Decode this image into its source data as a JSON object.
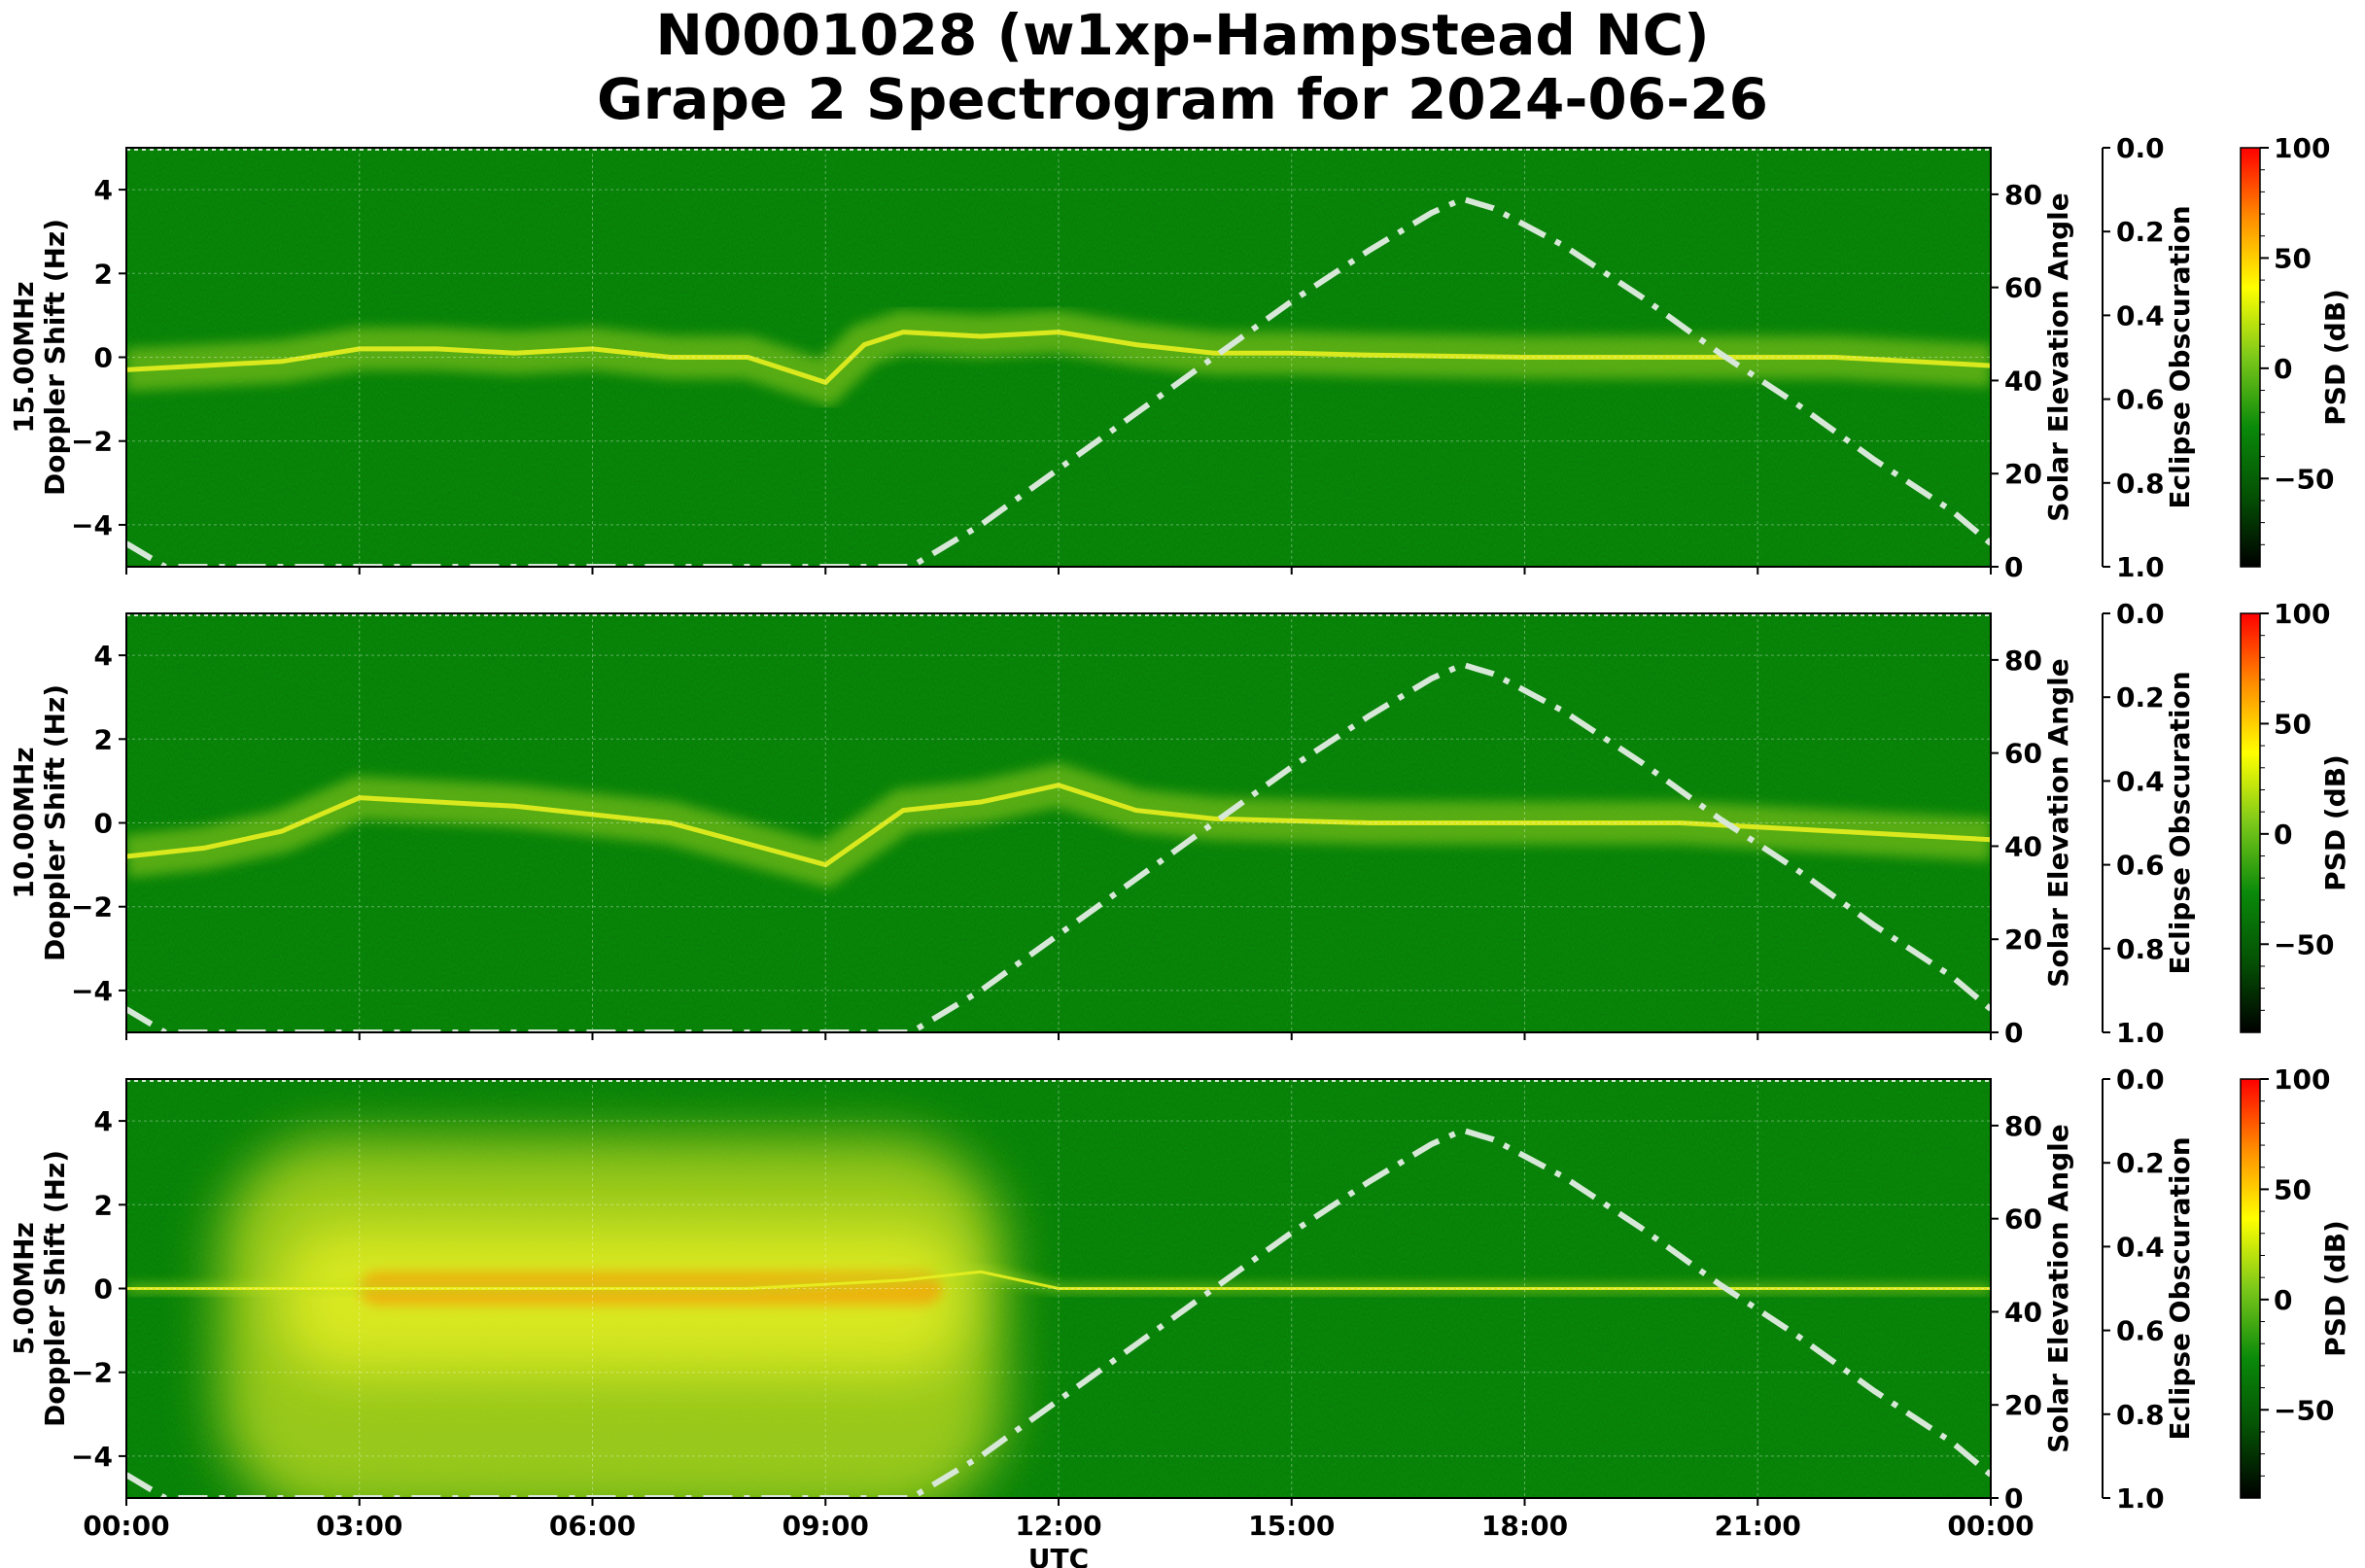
{
  "title": {
    "line1": "N0001028 (w1xp-Hampstead NC)",
    "line2": "Grape 2 Spectrogram for 2024-06-26"
  },
  "colors": {
    "spectrogram_base": "#0a7a0a",
    "signal_yellow": "#e8f020",
    "signal_orange": "#ff8800",
    "solar_curve": "#d8e8d8",
    "colormap": [
      "#000000",
      "#045004",
      "#0a8a0a",
      "#7cc81a",
      "#ffff00",
      "#ff8c00",
      "#ff0000"
    ]
  },
  "chart_data": [
    {
      "type": "heatmap",
      "panel": "15.00MHz",
      "ylabel": "15.00MHz\nDoppler Shift (Hz)",
      "ylim": [
        -5,
        5
      ],
      "yticks": [
        "4",
        "2",
        "0",
        "−2",
        "−4"
      ],
      "right_axis": {
        "label": "Solar Elevation Angle",
        "ylim": [
          0,
          90
        ],
        "ticks": [
          "0",
          "20",
          "40",
          "60",
          "80"
        ]
      },
      "eclipse_axis": {
        "label": "Eclipse Obscuration",
        "ylim": [
          1.0,
          0.0
        ],
        "ticks": [
          "0.0",
          "0.2",
          "0.4",
          "0.6",
          "0.8",
          "1.0"
        ]
      },
      "colorbar": {
        "label": "PSD (dB)",
        "range": [
          -90,
          100
        ],
        "ticks": [
          "100",
          "50",
          "0",
          "−50"
        ]
      },
      "doppler_trace_hz": [
        [
          0.0,
          -0.3
        ],
        [
          1.0,
          -0.2
        ],
        [
          2.0,
          -0.1
        ],
        [
          3.0,
          0.2
        ],
        [
          4.0,
          0.2
        ],
        [
          5.0,
          0.1
        ],
        [
          6.0,
          0.2
        ],
        [
          7.0,
          0.0
        ],
        [
          8.0,
          0.0
        ],
        [
          9.0,
          -0.6
        ],
        [
          9.5,
          0.3
        ],
        [
          10.0,
          0.6
        ],
        [
          11.0,
          0.5
        ],
        [
          12.0,
          0.6
        ],
        [
          13.0,
          0.3
        ],
        [
          14.0,
          0.1
        ],
        [
          15.0,
          0.1
        ],
        [
          16.0,
          0.05
        ],
        [
          18.0,
          0.0
        ],
        [
          20.0,
          0.0
        ],
        [
          22.0,
          0.0
        ],
        [
          24.0,
          -0.2
        ]
      ]
    },
    {
      "type": "heatmap",
      "panel": "10.00MHz",
      "ylabel": "10.00MHz\nDoppler Shift (Hz)",
      "ylim": [
        -5,
        5
      ],
      "yticks": [
        "4",
        "2",
        "0",
        "−2",
        "−4"
      ],
      "right_axis": {
        "label": "Solar Elevation Angle",
        "ylim": [
          0,
          90
        ],
        "ticks": [
          "0",
          "20",
          "40",
          "60",
          "80"
        ]
      },
      "eclipse_axis": {
        "label": "Eclipse Obscuration",
        "ylim": [
          1.0,
          0.0
        ],
        "ticks": [
          "0.0",
          "0.2",
          "0.4",
          "0.6",
          "0.8",
          "1.0"
        ]
      },
      "colorbar": {
        "label": "PSD (dB)",
        "range": [
          -90,
          100
        ],
        "ticks": [
          "100",
          "50",
          "0",
          "−50"
        ]
      },
      "doppler_trace_hz": [
        [
          0.0,
          -0.8
        ],
        [
          1.0,
          -0.6
        ],
        [
          2.0,
          -0.2
        ],
        [
          3.0,
          0.6
        ],
        [
          4.0,
          0.5
        ],
        [
          5.0,
          0.4
        ],
        [
          6.0,
          0.2
        ],
        [
          7.0,
          0.0
        ],
        [
          8.0,
          -0.5
        ],
        [
          9.0,
          -1.0
        ],
        [
          10.0,
          0.3
        ],
        [
          11.0,
          0.5
        ],
        [
          12.0,
          0.9
        ],
        [
          13.0,
          0.3
        ],
        [
          14.0,
          0.1
        ],
        [
          16.0,
          0.0
        ],
        [
          20.0,
          0.0
        ],
        [
          22.0,
          -0.2
        ],
        [
          24.0,
          -0.4
        ]
      ]
    },
    {
      "type": "heatmap",
      "panel": "5.00MHz",
      "ylabel": "5.00MHz\nDoppler Shift (Hz)",
      "ylim": [
        -5,
        5
      ],
      "yticks": [
        "4",
        "2",
        "0",
        "−2",
        "−4"
      ],
      "right_axis": {
        "label": "Solar Elevation Angle",
        "ylim": [
          0,
          90
        ],
        "ticks": [
          "0",
          "20",
          "40",
          "60",
          "80"
        ]
      },
      "eclipse_axis": {
        "label": "Eclipse Obscuration",
        "ylim": [
          1.0,
          0.0
        ],
        "ticks": [
          "0.0",
          "0.2",
          "0.4",
          "0.6",
          "0.8",
          "1.0"
        ]
      },
      "colorbar": {
        "label": "PSD (dB)",
        "range": [
          -90,
          100
        ],
        "ticks": [
          "100",
          "50",
          "0",
          "−50"
        ]
      },
      "doppler_trace_hz": [
        [
          0.0,
          0.0
        ],
        [
          2.0,
          0.0
        ],
        [
          4.0,
          0.0
        ],
        [
          6.0,
          0.0
        ],
        [
          8.0,
          0.0
        ],
        [
          10.0,
          0.2
        ],
        [
          11.0,
          0.4
        ],
        [
          12.0,
          0.0
        ],
        [
          18.0,
          0.0
        ],
        [
          24.0,
          0.0
        ]
      ]
    }
  ],
  "solar_elevation_deg": [
    [
      0.0,
      5
    ],
    [
      0.5,
      0
    ],
    [
      10.1,
      0
    ],
    [
      11,
      9
    ],
    [
      12,
      21
    ],
    [
      13,
      33
    ],
    [
      14,
      45
    ],
    [
      15,
      57
    ],
    [
      16,
      68
    ],
    [
      16.8,
      76
    ],
    [
      17.2,
      79
    ],
    [
      17.6,
      77
    ],
    [
      18.5,
      69
    ],
    [
      19.5,
      58
    ],
    [
      20.5,
      46
    ],
    [
      21.5,
      35
    ],
    [
      22.5,
      23
    ],
    [
      23.5,
      12
    ],
    [
      24.0,
      5
    ]
  ],
  "xaxis": {
    "label": "UTC",
    "ticks": [
      "00:00",
      "03:00",
      "06:00",
      "09:00",
      "12:00",
      "15:00",
      "18:00",
      "21:00",
      "00:00"
    ]
  }
}
